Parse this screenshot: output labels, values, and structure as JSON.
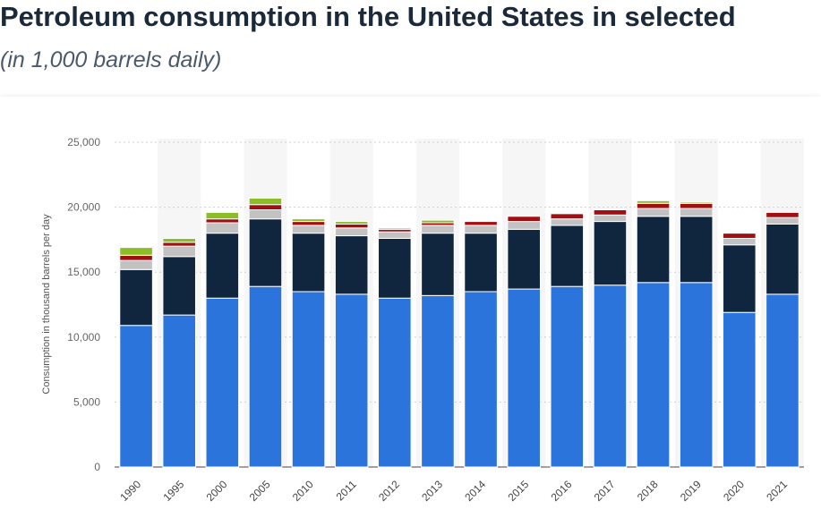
{
  "header": {
    "title": "Petroleum consumption in the United States in selected",
    "subtitle": "(in 1,000 barrels daily)"
  },
  "chart_data": {
    "type": "bar",
    "stacked": true,
    "title": "Petroleum consumption in the United States in selected",
    "subtitle": "(in 1,000 barrels daily)",
    "xlabel": "",
    "ylabel": "Consumption in thousand barrels per day",
    "ylim": [
      0,
      25000
    ],
    "yticks": [
      0,
      5000,
      10000,
      15000,
      20000,
      25000
    ],
    "ytick_labels": [
      "0",
      "5,000",
      "10,000",
      "15,000",
      "20,000",
      "25,000"
    ],
    "grid": true,
    "categories": [
      "1990",
      "1995",
      "2000",
      "2005",
      "2010",
      "2011",
      "2012",
      "2013",
      "2014",
      "2015",
      "2016",
      "2017",
      "2018",
      "2019",
      "2020",
      "2021"
    ],
    "series": [
      {
        "color": "#2a74dc",
        "values": [
          10900,
          11700,
          13000,
          13900,
          13500,
          13300,
          13000,
          13200,
          13500,
          13700,
          13900,
          14000,
          14200,
          14200,
          11900,
          13300
        ]
      },
      {
        "color": "#10263f",
        "values": [
          4300,
          4500,
          5000,
          5200,
          4500,
          4500,
          4600,
          4800,
          4500,
          4600,
          4700,
          4900,
          5100,
          5100,
          5200,
          5400
        ]
      },
      {
        "color": "#c2c2c2",
        "values": [
          700,
          800,
          800,
          700,
          600,
          600,
          500,
          600,
          600,
          600,
          500,
          500,
          600,
          600,
          500,
          500
        ]
      },
      {
        "color": "#a10f12",
        "values": [
          400,
          300,
          300,
          400,
          300,
          300,
          200,
          200,
          300,
          400,
          400,
          400,
          400,
          400,
          400,
          400
        ]
      },
      {
        "color": "#8bbd27",
        "values": [
          600,
          300,
          500,
          500,
          200,
          200,
          100,
          200,
          0,
          0,
          0,
          0,
          200,
          100,
          0,
          0
        ]
      }
    ]
  }
}
